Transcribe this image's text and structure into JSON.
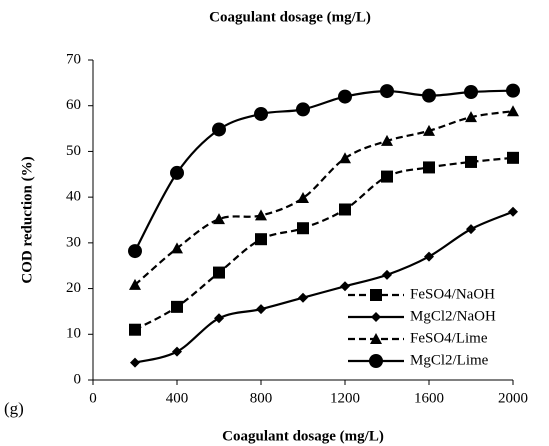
{
  "chart_data": {
    "type": "line",
    "title": "Coagulant dosage (mg/L)",
    "xlabel": "Coagulant dosage (mg/L)",
    "ylabel": "COD reduction (%)",
    "annotation": "(g)",
    "x": [
      200,
      400,
      600,
      800,
      1000,
      1200,
      1400,
      1600,
      1800,
      2000
    ],
    "series": [
      {
        "name": "FeSO4/NaOH",
        "color": "#000000",
        "dash": "dashed",
        "marker": "square",
        "values": [
          11,
          16,
          23.5,
          30.8,
          33.2,
          37.3,
          44.5,
          46.5,
          47.7,
          48.6
        ]
      },
      {
        "name": "MgCl2/NaOH",
        "color": "#000000",
        "dash": "solid",
        "marker": "diamond",
        "values": [
          3.8,
          6.2,
          13.5,
          15.5,
          18,
          20.5,
          23,
          27,
          33,
          36.8
        ]
      },
      {
        "name": "FeSO4/Lime",
        "color": "#000000",
        "dash": "dashed",
        "marker": "triangle",
        "values": [
          20.8,
          28.8,
          35.2,
          36,
          39.8,
          48.5,
          52.3,
          54.5,
          57.5,
          58.8
        ]
      },
      {
        "name": "MgCl2/Lime",
        "color": "#000000",
        "dash": "solid",
        "marker": "circle",
        "values": [
          28.2,
          45.3,
          54.8,
          58.2,
          59.2,
          62,
          63.2,
          62.2,
          63,
          63.3
        ]
      }
    ],
    "xlim": [
      0,
      2000
    ],
    "xticks": [
      0,
      400,
      800,
      1200,
      1600,
      2000
    ],
    "ylim": [
      0,
      70
    ],
    "yticks": [
      0,
      10,
      20,
      30,
      40,
      50,
      60,
      70
    ],
    "grid": false,
    "legend": "lower right"
  }
}
